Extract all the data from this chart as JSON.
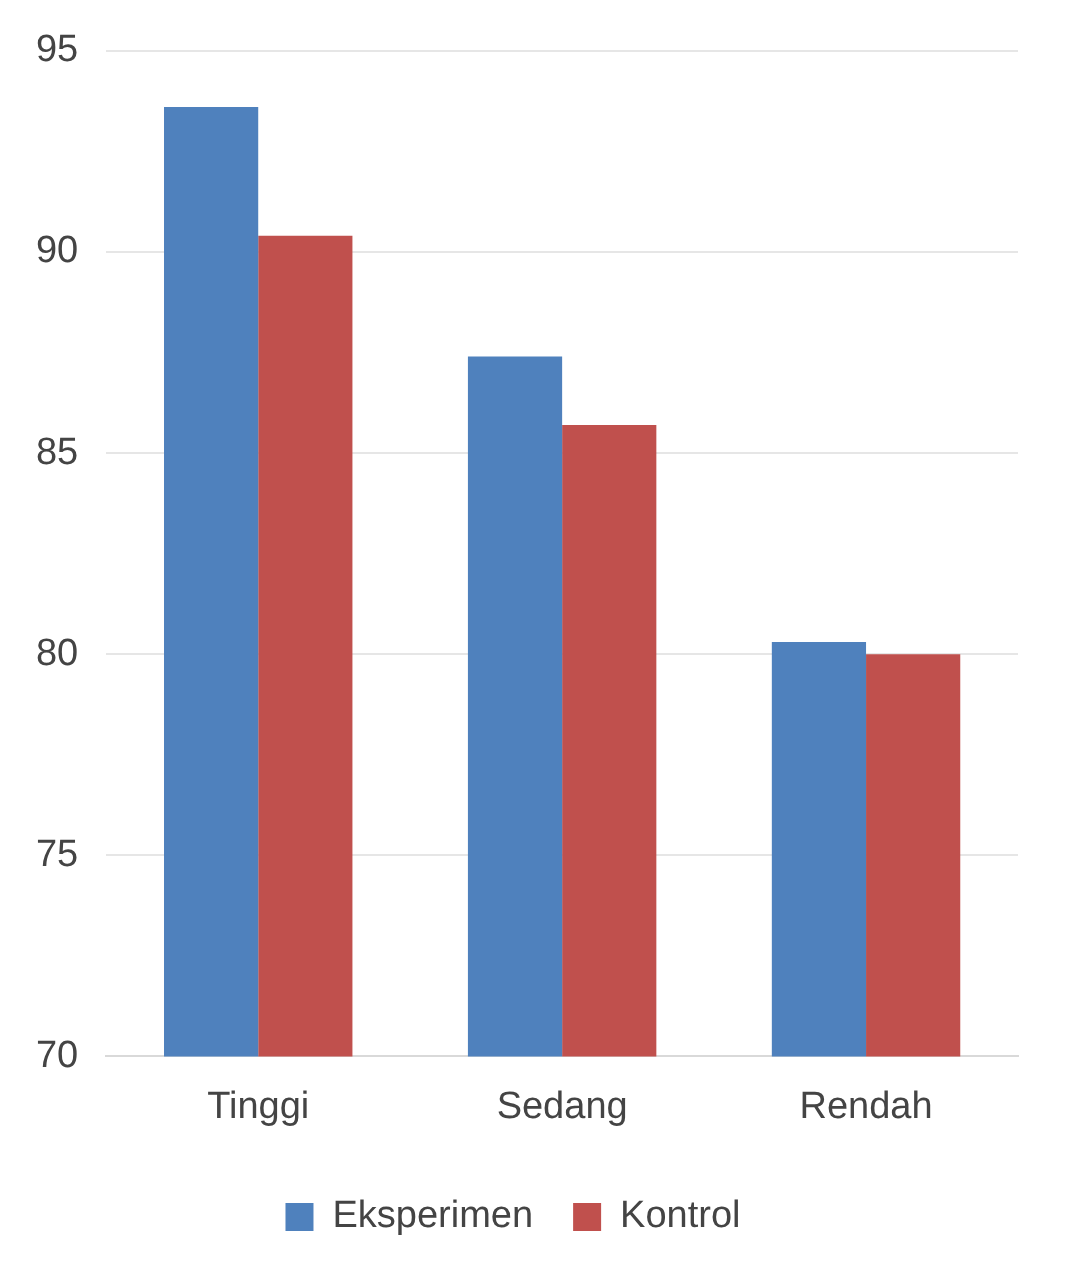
{
  "chart_data": {
    "type": "bar",
    "categories": [
      "Tinggi",
      "Sedang",
      "Rendah"
    ],
    "series": [
      {
        "name": "Eksperimen",
        "color": "#4f81bd",
        "values": [
          93.6,
          87.4,
          80.3
        ]
      },
      {
        "name": "Kontrol",
        "color": "#c0504d",
        "values": [
          90.4,
          85.7,
          80.0
        ]
      }
    ],
    "ylim": [
      70,
      95
    ],
    "yticks": [
      70,
      75,
      80,
      85,
      90,
      95
    ],
    "grid": "y",
    "legend": "bottom"
  }
}
